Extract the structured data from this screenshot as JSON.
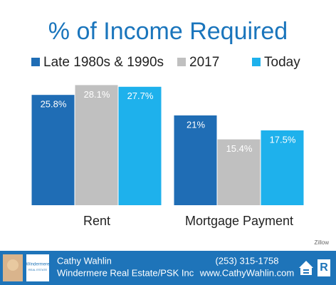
{
  "chart_data": {
    "type": "bar",
    "title": "% of Income Required",
    "categories": [
      "Rent",
      "Mortgage Payment"
    ],
    "series": [
      {
        "name": "Late 1980s & 1990s",
        "color": "#1f6db5",
        "values": [
          25.8,
          21
        ],
        "value_labels": [
          "25.8%",
          "21%"
        ]
      },
      {
        "name": "2017",
        "color": "#c0c0c0",
        "values": [
          28.1,
          15.4
        ],
        "value_labels": [
          "28.1%",
          "15.4%"
        ]
      },
      {
        "name": "Today",
        "color": "#1eb1ec",
        "values": [
          27.7,
          17.5
        ],
        "value_labels": [
          "27.7%",
          "17.5%"
        ]
      }
    ],
    "ylim": [
      0,
      40
    ],
    "legend": "top",
    "source": "Zillow"
  },
  "footer": {
    "logo": [
      "Windermere",
      "REAL ESTATE"
    ],
    "name": "Cathy Wahlin",
    "company": "Windermere Real Estate/PSK Inc",
    "phone": "(253) 315-1758",
    "website": "www.CathyWahlin.com",
    "badge": "R"
  }
}
